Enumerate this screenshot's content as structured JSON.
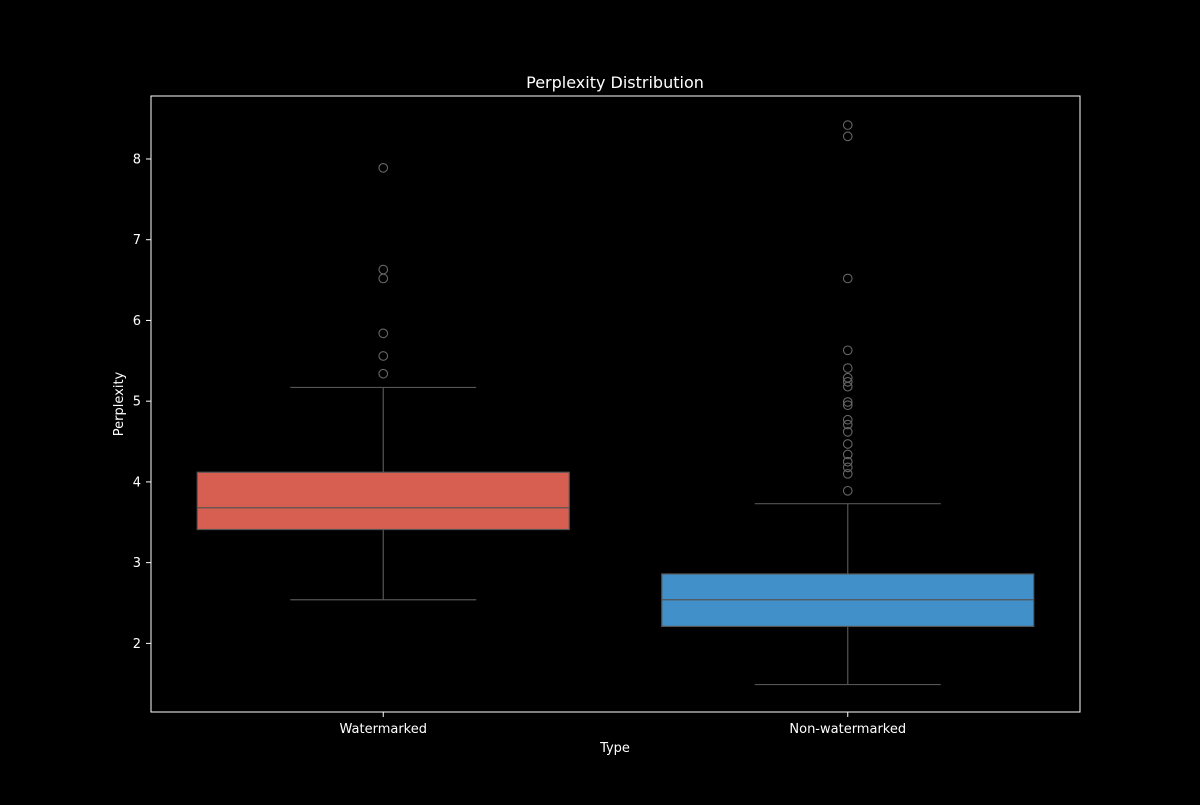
{
  "chart_data": {
    "type": "box",
    "title": "Perplexity Distribution",
    "xlabel": "Type",
    "ylabel": "Perplexity",
    "ylim": [
      1.15,
      8.78
    ],
    "yticks": [
      "2",
      "3",
      "4",
      "5",
      "6",
      "7",
      "8"
    ],
    "grid": false,
    "categories": [
      "Watermarked",
      "Non-watermarked"
    ],
    "series": [
      {
        "category": "Watermarked",
        "color": "#d65f52",
        "whisker_low": 2.54,
        "q1": 3.41,
        "median": 3.68,
        "q3": 4.12,
        "whisker_high": 5.17,
        "outliers": [
          5.34,
          5.56,
          5.84,
          6.52,
          6.63,
          7.89
        ]
      },
      {
        "category": "Non-watermarked",
        "color": "#4290c9",
        "whisker_low": 1.49,
        "q1": 2.21,
        "median": 2.54,
        "q3": 2.86,
        "whisker_high": 3.73,
        "outliers": [
          3.89,
          4.1,
          4.18,
          4.25,
          4.34,
          4.47,
          4.62,
          4.71,
          4.77,
          4.95,
          4.99,
          5.18,
          5.24,
          5.29,
          5.41,
          5.63,
          6.52,
          8.28,
          8.42
        ]
      }
    ],
    "colors": {
      "background": "#000000",
      "axes_edge": "#ffffff",
      "box_edge": "#555555",
      "outlier_edge": "#666666"
    }
  }
}
